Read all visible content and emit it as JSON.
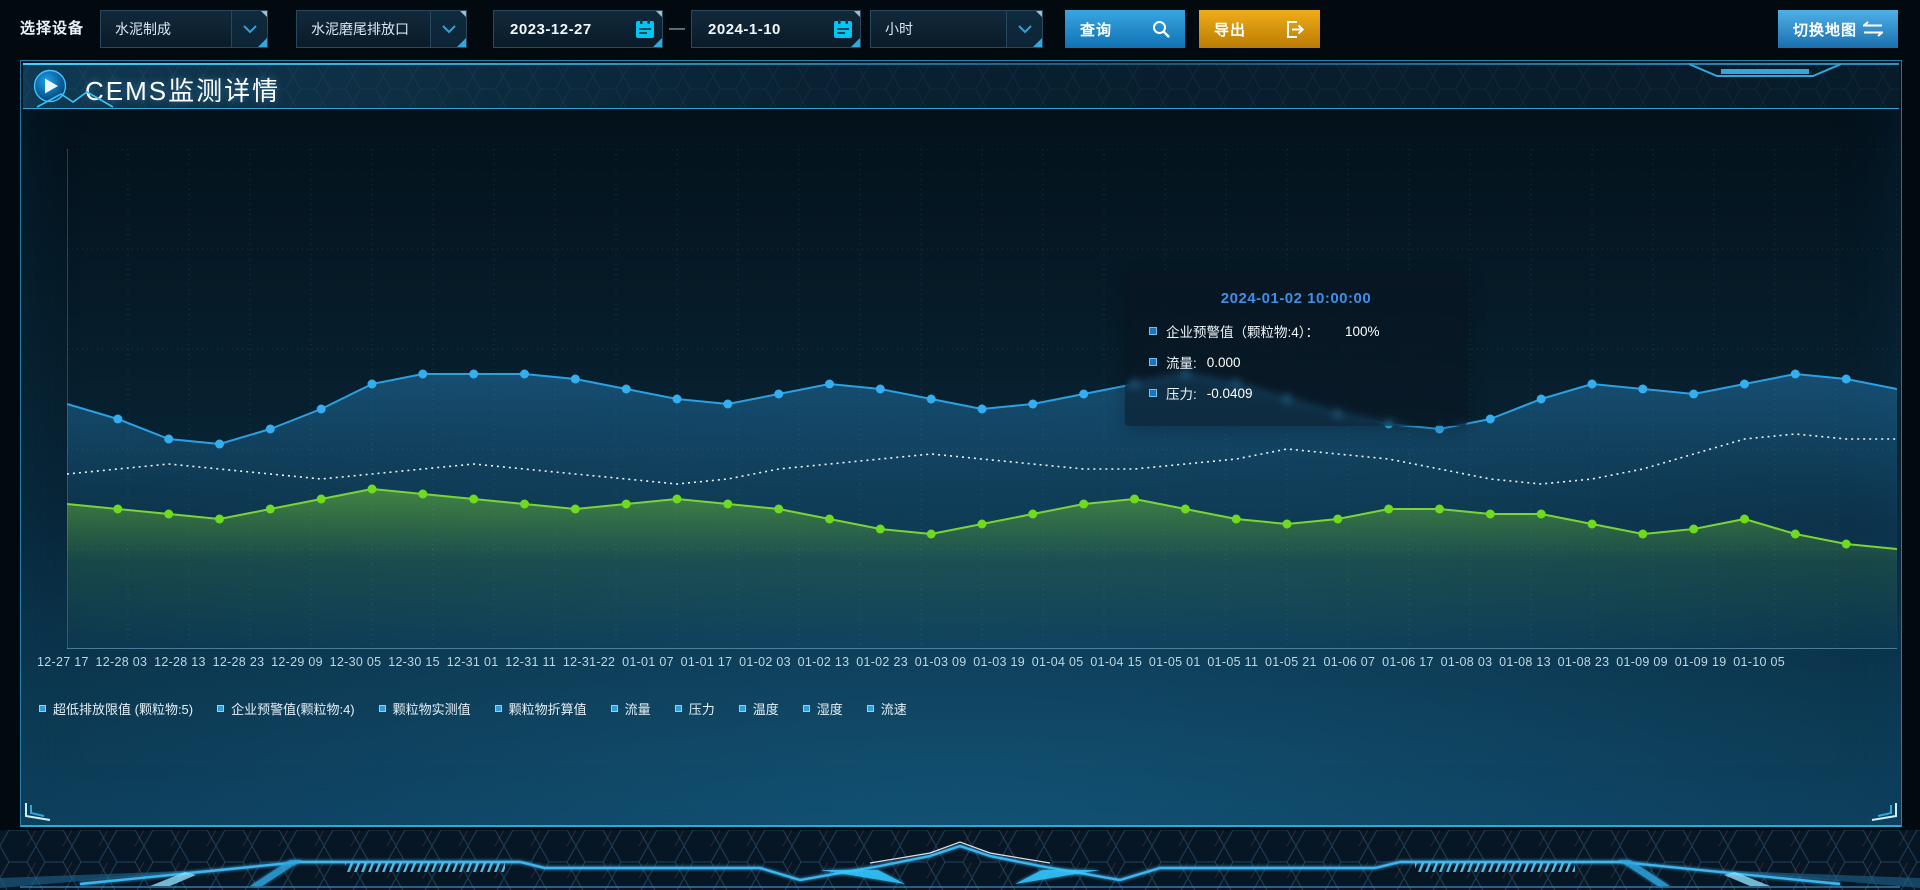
{
  "toolbar": {
    "device_label": "选择设备",
    "device_select_value": "水泥制成",
    "outlet_select_value": "水泥磨尾排放口",
    "date_start": "2023-12-27",
    "date_separator": "—",
    "date_end": "2024-1-10",
    "interval_select_value": "小时",
    "query_label": "查询",
    "export_label": "导出",
    "switch_map_label": "切换地图"
  },
  "panel": {
    "title": "CEMS监测详情"
  },
  "tooltip": {
    "title": "2024-01-02 10:00:00",
    "rows": [
      {
        "label": "企业预警值（颗粒物:4）：",
        "value": "100%"
      },
      {
        "label": "流量:",
        "value": "0.000"
      },
      {
        "label": "压力:",
        "value": "-0.0409"
      }
    ]
  },
  "colors": {
    "accent_cyan": "#2fa8e0",
    "query_button": "#1a7fc0",
    "export_button": "#d9940e",
    "series_blue": "#2ba1e3",
    "series_green": "#7bd435",
    "series_white_dotted": "#e9f5fa",
    "tooltip_title": "#3f8fea",
    "legend_marker": "#2f9fd8"
  },
  "chart_data": {
    "type": "line",
    "title": "",
    "xlabel": "",
    "ylabel": "",
    "ylim": [
      0,
      100
    ],
    "y_units": "percent-of-plot-height (y axis unlabeled in UI)",
    "grid": true,
    "legend_position": "bottom",
    "x_labels": [
      "12-27 17",
      "12-28 03",
      "12-28 13",
      "12-28 23",
      "12-29 09",
      "12-30 05",
      "12-30 15",
      "12-31 01",
      "12-31 11",
      "12-31-22",
      "01-01 07",
      "01-01 17",
      "01-02 03",
      "01-02 13",
      "01-02 23",
      "01-03 09",
      "01-03 19",
      "01-04 05",
      "01-04 15",
      "01-05 01",
      "01-05 11",
      "01-05 21",
      "01-06 07",
      "01-06 17",
      "01-08 03",
      "01-08 13",
      "01-08 23",
      "01-09 09",
      "01-09 19",
      "01-10 05"
    ],
    "legend": [
      "超低排放限值 (颗粒物:5)",
      "企业预警值(颗粒物:4)",
      "颗粒物实测值",
      "颗粒物折算值",
      "流量",
      "压力",
      "温度",
      "湿度",
      "流速"
    ],
    "series": [
      {
        "name": "blue-line",
        "color": "#2ba1e3",
        "dot_color": "#35aef0",
        "style": "solid",
        "markers": true,
        "area": true,
        "area_gradient_id": "gBlue",
        "width": 2,
        "values": [
          49,
          46,
          42,
          41,
          44,
          48,
          53,
          55,
          55,
          55,
          54,
          52,
          50,
          49,
          51,
          53,
          52,
          50,
          48,
          49,
          51,
          53,
          55,
          53,
          50,
          47,
          45,
          44,
          46,
          50,
          53,
          52,
          51,
          53,
          55,
          54,
          52
        ]
      },
      {
        "name": "white-dotted-line",
        "color": "#e9f5fa",
        "style": "dotted",
        "markers": false,
        "area": false,
        "width": 1.6,
        "values": [
          35,
          36,
          37,
          36,
          35,
          34,
          35,
          36,
          37,
          36,
          35,
          34,
          33,
          34,
          36,
          37,
          38,
          39,
          38,
          37,
          36,
          36,
          37,
          38,
          40,
          39,
          38,
          36,
          34,
          33,
          34,
          36,
          39,
          42,
          43,
          42,
          42
        ]
      },
      {
        "name": "green-line",
        "color": "#7bd435",
        "dot_color": "#6fdb1f",
        "style": "solid",
        "markers": true,
        "area": true,
        "area_gradient_id": "gGreen",
        "width": 2,
        "values": [
          29,
          28,
          27,
          26,
          28,
          30,
          32,
          31,
          30,
          29,
          28,
          29,
          30,
          29,
          28,
          26,
          24,
          23,
          25,
          27,
          29,
          30,
          28,
          26,
          25,
          26,
          28,
          28,
          27,
          27,
          25,
          23,
          24,
          26,
          23,
          21,
          20
        ]
      }
    ]
  }
}
